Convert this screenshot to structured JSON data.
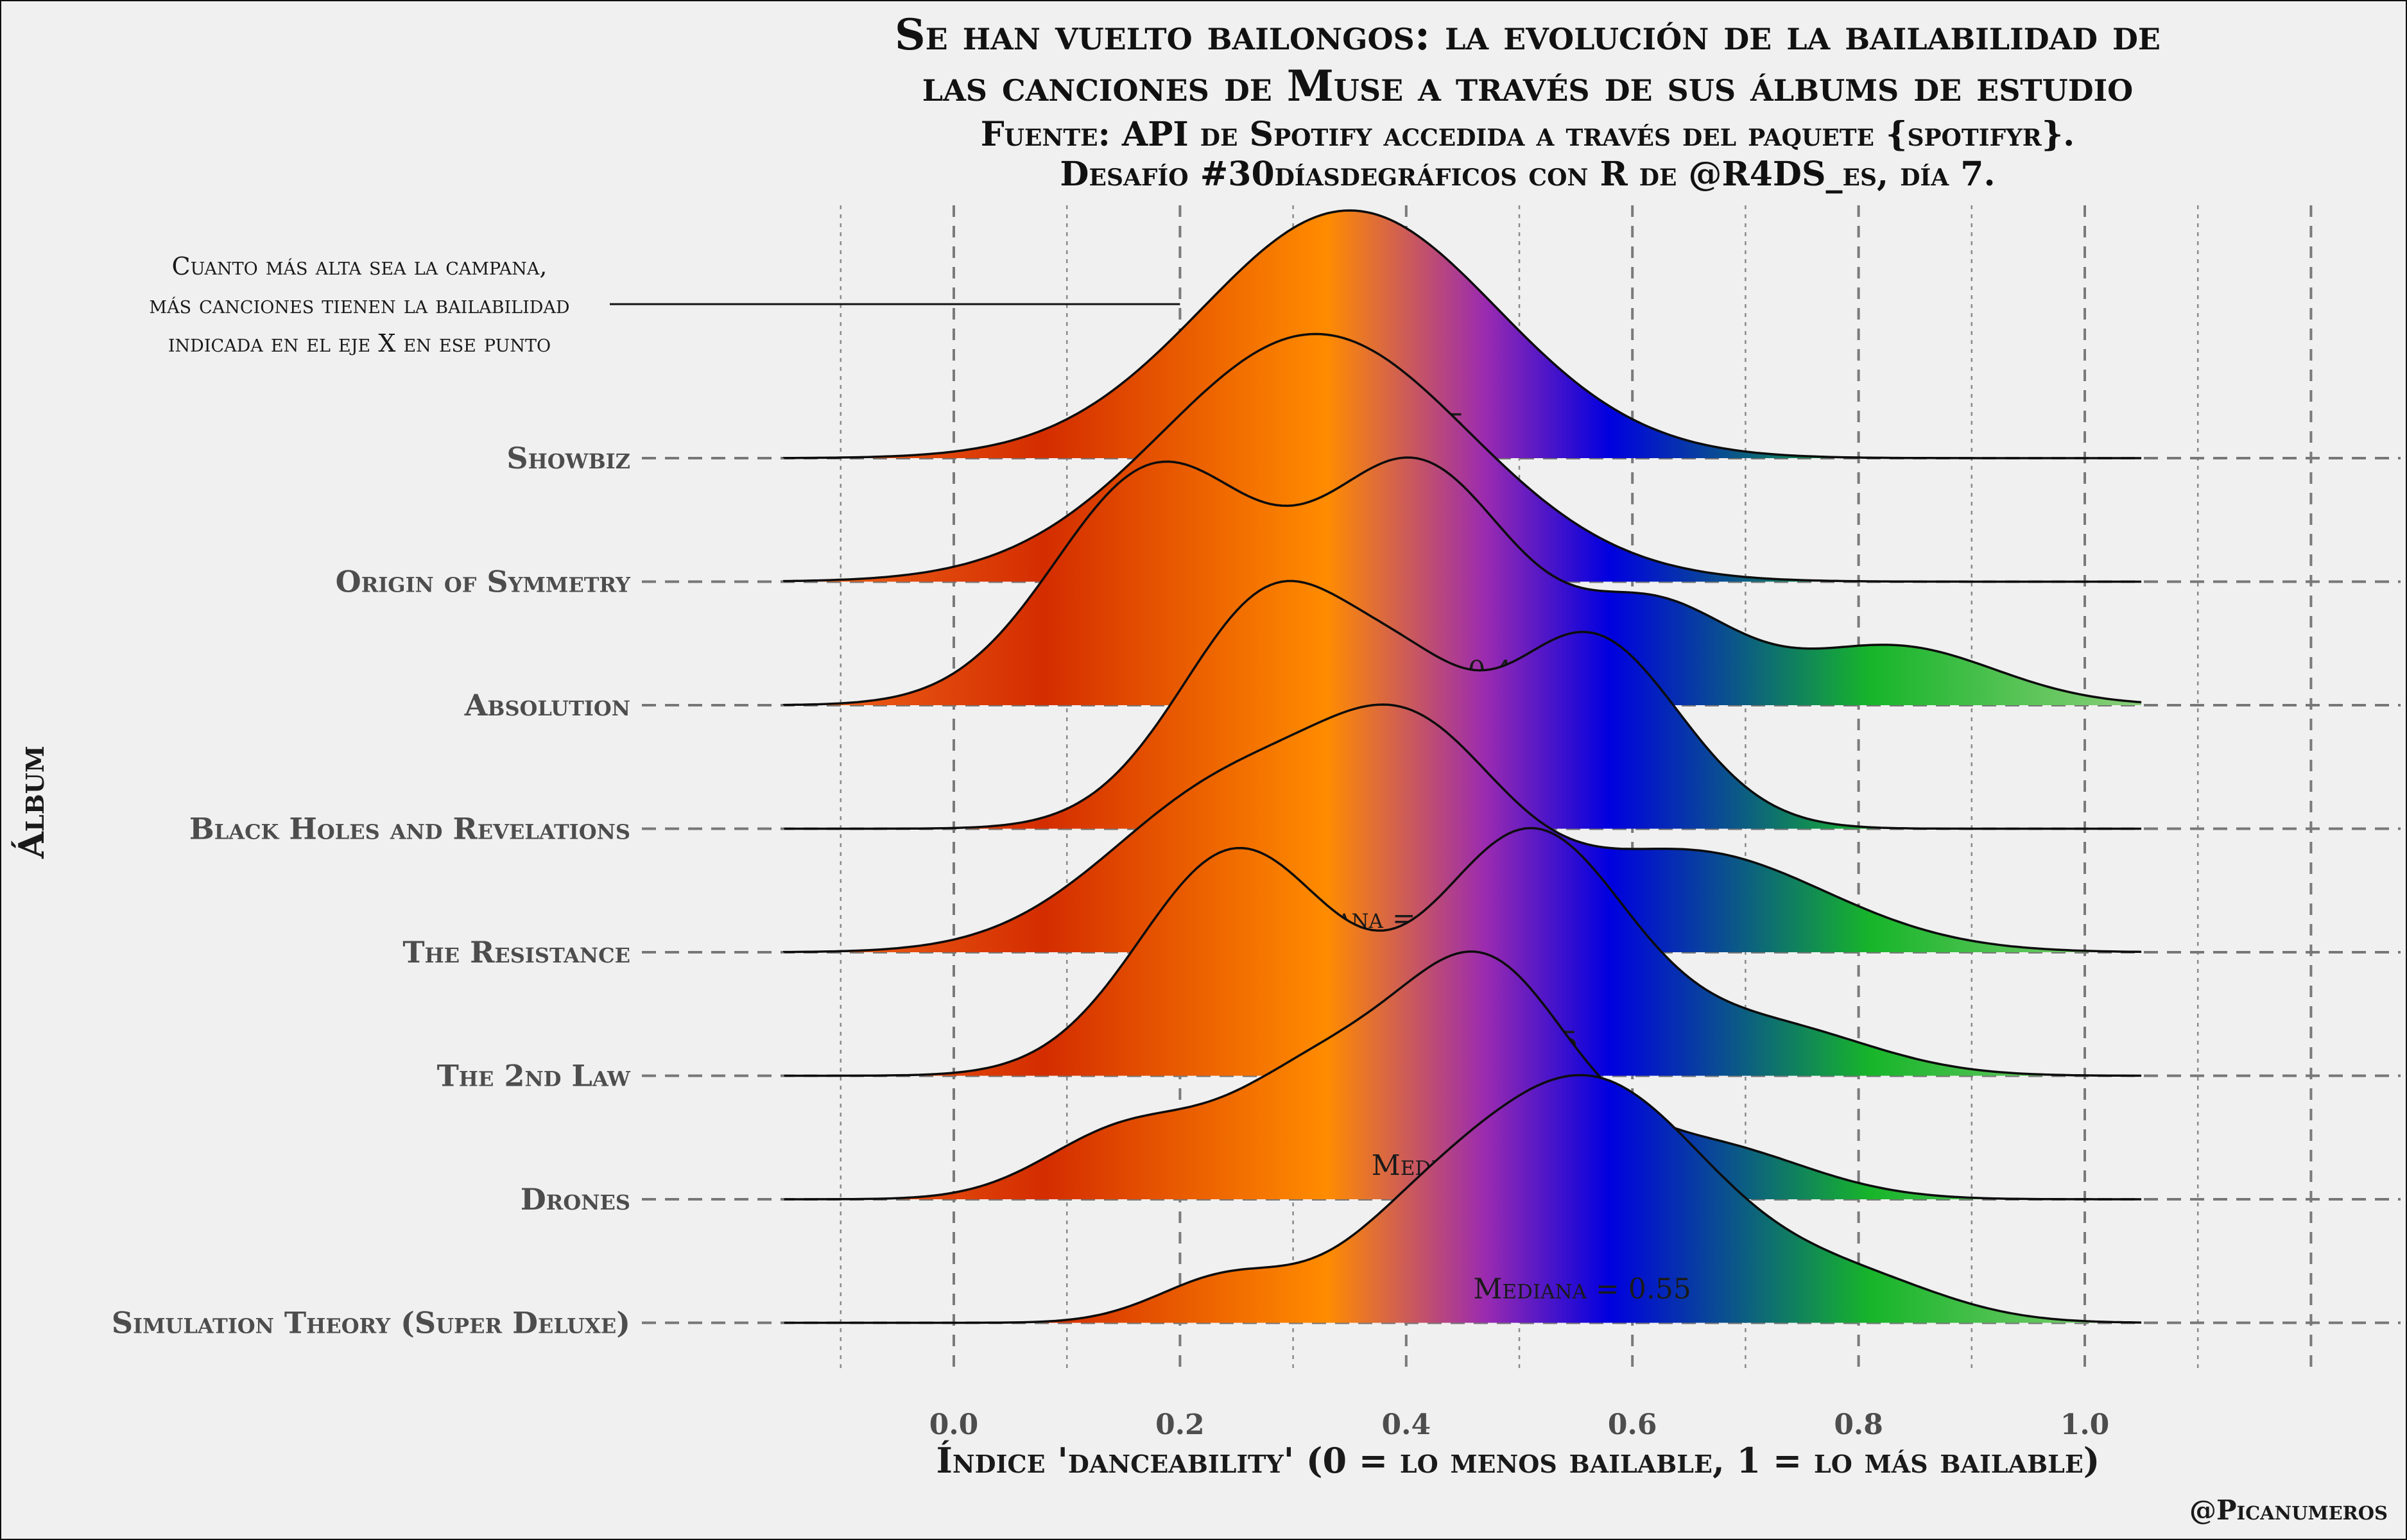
{
  "title_line1": "Se han vuelto bailongos: la evolución de la bailabilidad de",
  "title_line2": "las canciones de Muse a través de sus álbums de estudio",
  "subtitle_line1": "Fuente: API de Spotify accedida a través del paquete {spotifyr}.",
  "subtitle_line2": "Desafío #30díasdegráficos con R de @R4DS_es, día 7.",
  "caption": "@Picanumeros",
  "annotation": [
    "Cuanto más alta sea la campana,",
    "más canciones tienen la bailabilidad",
    "indicada en el eje X en ese punto"
  ],
  "colors": {
    "background": "#f0f0f0",
    "gradient": [
      {
        "x": -0.15,
        "color": "#f26b1d"
      },
      {
        "x": 0.08,
        "color": "#d42d00"
      },
      {
        "x": 0.33,
        "color": "#ff8c00"
      },
      {
        "x": 0.47,
        "color": "#9b2bb0"
      },
      {
        "x": 0.58,
        "color": "#0000e0"
      },
      {
        "x": 0.81,
        "color": "#17b52a"
      },
      {
        "x": 1.05,
        "color": "#8ccf7a"
      }
    ]
  },
  "chart_data": {
    "type": "ridgeline",
    "xlabel": "Índice 'danceability' (0 = lo menos bailable, 1 = lo más bailable)",
    "ylabel": "Álbum",
    "xlim": [
      -0.2,
      1.2
    ],
    "xticks": [
      "0.0",
      "0.2",
      "0.4",
      "0.6",
      "0.8",
      "1.0"
    ],
    "xtick_values": [
      0.0,
      0.2,
      0.4,
      0.6,
      0.8,
      1.0
    ],
    "density_range": [
      -0.15,
      1.05
    ],
    "grid": true,
    "median_label_prefix": "Mediana = ",
    "series": [
      {
        "name": "Showbiz",
        "median": "0.35",
        "median_value": 0.35,
        "density": [
          [
            0.35,
            1.0,
            0.13
          ]
        ]
      },
      {
        "name": "Origin of Symmetry",
        "median": "0.32",
        "median_value": 0.32,
        "density": [
          [
            0.32,
            1.0,
            0.135
          ]
        ]
      },
      {
        "name": "Absolution",
        "median": "0.4",
        "median_value": 0.4,
        "density": [
          [
            0.18,
            1.0,
            0.09
          ],
          [
            0.41,
            1.0,
            0.085
          ],
          [
            0.62,
            0.4,
            0.07
          ],
          [
            0.83,
            0.25,
            0.09
          ]
        ]
      },
      {
        "name": "Black Holes and Revelations",
        "median": "0.38",
        "median_value": 0.38,
        "density": [
          [
            0.29,
            1.0,
            0.085
          ],
          [
            0.41,
            0.25,
            0.05
          ],
          [
            0.56,
            0.8,
            0.08
          ]
        ]
      },
      {
        "name": "The Resistance",
        "median": "0.37",
        "median_value": 0.37,
        "density": [
          [
            0.25,
            0.75,
            0.11
          ],
          [
            0.41,
            0.75,
            0.08
          ],
          [
            0.65,
            0.45,
            0.12
          ]
        ]
      },
      {
        "name": "The 2nd Law",
        "median": "0.45",
        "median_value": 0.45,
        "density": [
          [
            0.25,
            0.93,
            0.085
          ],
          [
            0.51,
            1.0,
            0.085
          ],
          [
            0.72,
            0.2,
            0.09
          ]
        ]
      },
      {
        "name": "Drones",
        "median": "0.46",
        "median_value": 0.46,
        "density": [
          [
            0.15,
            0.3,
            0.07
          ],
          [
            0.32,
            0.55,
            0.08
          ],
          [
            0.47,
            1.0,
            0.075
          ],
          [
            0.66,
            0.25,
            0.09
          ]
        ]
      },
      {
        "name": "Simulation Theory (Super Deluxe)",
        "median": "0.55",
        "median_value": 0.55,
        "density": [
          [
            0.24,
            0.18,
            0.06
          ],
          [
            0.4,
            0.2,
            0.07
          ],
          [
            0.56,
            1.0,
            0.11
          ],
          [
            0.8,
            0.15,
            0.08
          ]
        ]
      }
    ]
  }
}
